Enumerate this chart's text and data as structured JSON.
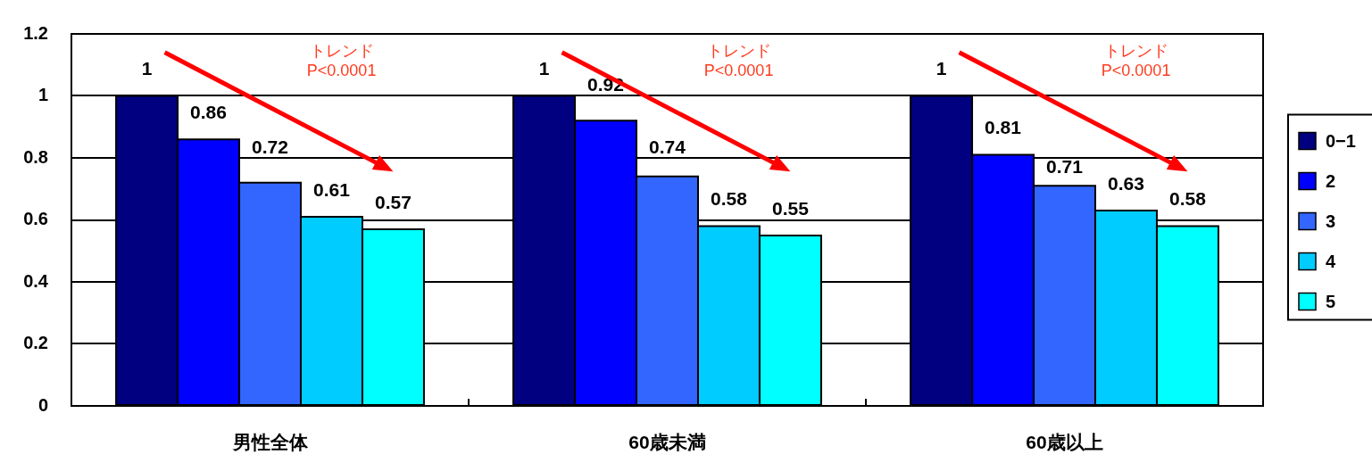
{
  "chart_data": {
    "type": "bar",
    "categories": [
      "男性全体",
      "60歳未満",
      "60歳以上"
    ],
    "series": [
      {
        "name": "0−1",
        "color": "#000080",
        "values": [
          1,
          1,
          1
        ]
      },
      {
        "name": "2",
        "color": "#0000ff",
        "values": [
          0.86,
          0.92,
          0.81
        ]
      },
      {
        "name": "3",
        "color": "#3366ff",
        "values": [
          0.72,
          0.74,
          0.71
        ]
      },
      {
        "name": "4",
        "color": "#00ccff",
        "values": [
          0.61,
          0.58,
          0.63
        ]
      },
      {
        "name": "5",
        "color": "#00ffff",
        "values": [
          0.57,
          0.55,
          0.58
        ]
      }
    ],
    "ylim": [
      0,
      1.2
    ],
    "yticks": [
      0,
      0.2,
      0.4,
      0.6,
      0.8,
      1,
      1.2
    ],
    "grid": "y",
    "legend": "right",
    "data_labels": true,
    "annotations": [
      "トレンド\nP<0.0001",
      "トレンド\nP<0.0001",
      "トレンド\nP<0.0001"
    ]
  }
}
